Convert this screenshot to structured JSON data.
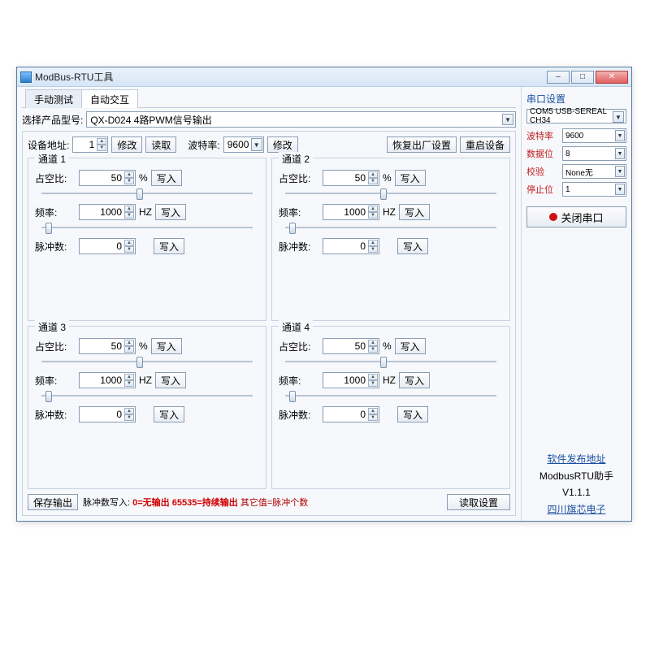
{
  "window": {
    "title": "ModBus-RTU工具"
  },
  "tabs": {
    "manual": "手动测试",
    "auto": "自动交互"
  },
  "product": {
    "label": "选择产品型号:",
    "value": "QX-D024          4路PWM信号输出"
  },
  "addr": {
    "device_addr_label": "设备地址:",
    "device_addr_value": "1",
    "modify": "修改",
    "read": "读取",
    "baud_label": "波特率:",
    "baud_value": "9600",
    "modify2": "修改",
    "restore": "恢复出厂设置",
    "reboot": "重启设备"
  },
  "channels": [
    {
      "title": "通道 1",
      "duty": "50",
      "freq": "1000",
      "pulse": "0"
    },
    {
      "title": "通道 2",
      "duty": "50",
      "freq": "1000",
      "pulse": "0"
    },
    {
      "title": "通道 3",
      "duty": "50",
      "freq": "1000",
      "pulse": "0"
    },
    {
      "title": "通道 4",
      "duty": "50",
      "freq": "1000",
      "pulse": "0"
    }
  ],
  "ch_labels": {
    "duty": "占空比:",
    "duty_unit": "%",
    "freq": "频率:",
    "freq_unit": "HZ",
    "pulse": "脉冲数:",
    "write": "写入"
  },
  "bottom": {
    "save": "保存输出",
    "legend_prefix": "脉冲数写入:  ",
    "legend_zero": "0=无输出 ",
    "legend_max": "65535=持续输出 ",
    "legend_other": "其它值=脉冲个数",
    "read": "读取设置"
  },
  "side": {
    "title": "串口设置",
    "port_value": "COM5 USB-SEREAL CH34",
    "baud_label": "波特率",
    "baud_value": "9600",
    "data_label": "数据位",
    "data_value": "8",
    "parity_label": "校验",
    "parity_value": "None无",
    "stop_label": "停止位",
    "stop_value": "1",
    "close": "关闭串口",
    "link1": "软件发布地址",
    "app_name": "ModbusRTU助手",
    "version": "V1.1.1",
    "link2": "四川旗芯电子"
  },
  "colors": {
    "accent_blue": "#1a4fa0",
    "danger_red": "#d00000"
  }
}
